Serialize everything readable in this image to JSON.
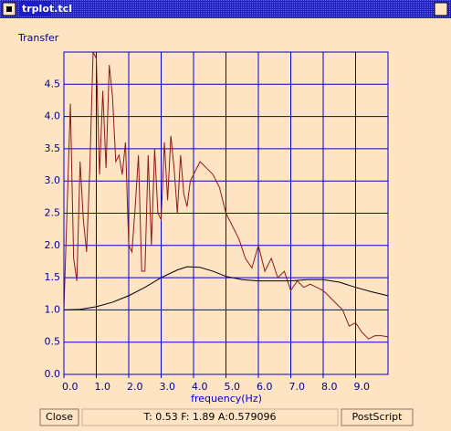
{
  "window": {
    "title": "trplot.tcl"
  },
  "chart_data": {
    "type": "line",
    "title": "Transfer",
    "x_label": "frequency(Hz)",
    "xlim": [
      0,
      10
    ],
    "ylim": [
      0,
      5
    ],
    "grid": true,
    "xticks": [
      {
        "value": 0,
        "label": "0.0"
      },
      {
        "value": 1,
        "label": "1.0"
      },
      {
        "value": 2,
        "label": "2.0"
      },
      {
        "value": 3,
        "label": "3.0"
      },
      {
        "value": 4,
        "label": "4.0"
      },
      {
        "value": 5,
        "label": "5.0"
      },
      {
        "value": 6,
        "label": "6.0"
      },
      {
        "value": 7,
        "label": "7.0"
      },
      {
        "value": 8,
        "label": "8.0"
      },
      {
        "value": 9,
        "label": "9.0"
      }
    ],
    "yticks": [
      {
        "value": 0,
        "label": "0.0"
      },
      {
        "value": 0.5,
        "label": "0.5"
      },
      {
        "value": 1,
        "label": "1.0"
      },
      {
        "value": 1.5,
        "label": "1.5"
      },
      {
        "value": 2,
        "label": "2.0"
      },
      {
        "value": 2.5,
        "label": "2.5"
      },
      {
        "value": 3,
        "label": "3.0"
      },
      {
        "value": 3.5,
        "label": "3.5"
      },
      {
        "value": 4,
        "label": "4.0"
      },
      {
        "value": 4.5,
        "label": "4.5"
      }
    ],
    "series": [
      {
        "color": "#8b1a1a",
        "x": [
          0,
          0.1,
          0.2,
          0.3,
          0.4,
          0.5,
          0.6,
          0.7,
          0.8,
          0.9,
          1.0,
          1.1,
          1.2,
          1.3,
          1.4,
          1.5,
          1.6,
          1.7,
          1.8,
          1.9,
          2.0,
          2.1,
          2.2,
          2.3,
          2.4,
          2.5,
          2.6,
          2.7,
          2.8,
          2.9,
          3.0,
          3.1,
          3.2,
          3.3,
          3.4,
          3.5,
          3.6,
          3.7,
          3.8,
          3.9,
          4.0,
          4.2,
          4.4,
          4.6,
          4.8,
          5.0,
          5.2,
          5.4,
          5.6,
          5.8,
          6.0,
          6.2,
          6.4,
          6.6,
          6.8,
          7.0,
          7.2,
          7.4,
          7.6,
          7.8,
          8.0,
          8.2,
          8.4,
          8.6,
          8.8,
          9.0,
          9.2,
          9.4,
          9.6,
          9.8,
          10.0
        ],
        "values": [
          1.0,
          2.6,
          4.2,
          1.8,
          1.45,
          3.3,
          2.4,
          1.9,
          3.2,
          5.0,
          4.9,
          3.1,
          4.4,
          3.2,
          4.8,
          4.3,
          3.3,
          3.4,
          3.1,
          3.6,
          2.0,
          1.9,
          2.6,
          3.4,
          1.6,
          1.6,
          3.4,
          2.0,
          3.5,
          2.5,
          2.4,
          3.6,
          2.7,
          3.7,
          3.2,
          2.5,
          3.4,
          2.8,
          2.6,
          3.0,
          3.1,
          3.3,
          3.2,
          3.1,
          2.9,
          2.5,
          2.3,
          2.1,
          1.8,
          1.65,
          2.0,
          1.6,
          1.8,
          1.5,
          1.6,
          1.3,
          1.45,
          1.35,
          1.4,
          1.35,
          1.3,
          1.2,
          1.1,
          1.0,
          0.75,
          0.8,
          0.65,
          0.55,
          0.6,
          0.6,
          0.58
        ]
      },
      {
        "color": "#000000",
        "x": [
          0,
          0.5,
          1,
          1.5,
          2,
          2.5,
          3,
          3.5,
          3.8,
          4.2,
          4.6,
          5,
          5.5,
          6,
          6.5,
          7,
          7.5,
          8,
          8.5,
          9,
          9.5,
          10
        ],
        "values": [
          1.0,
          1.01,
          1.05,
          1.12,
          1.22,
          1.35,
          1.5,
          1.62,
          1.67,
          1.66,
          1.6,
          1.52,
          1.47,
          1.45,
          1.45,
          1.45,
          1.47,
          1.47,
          1.43,
          1.35,
          1.28,
          1.22
        ]
      }
    ]
  },
  "status": "T: 0.53 F: 1.89 A:0.579096",
  "buttons": [
    "Close",
    "PostScript"
  ]
}
